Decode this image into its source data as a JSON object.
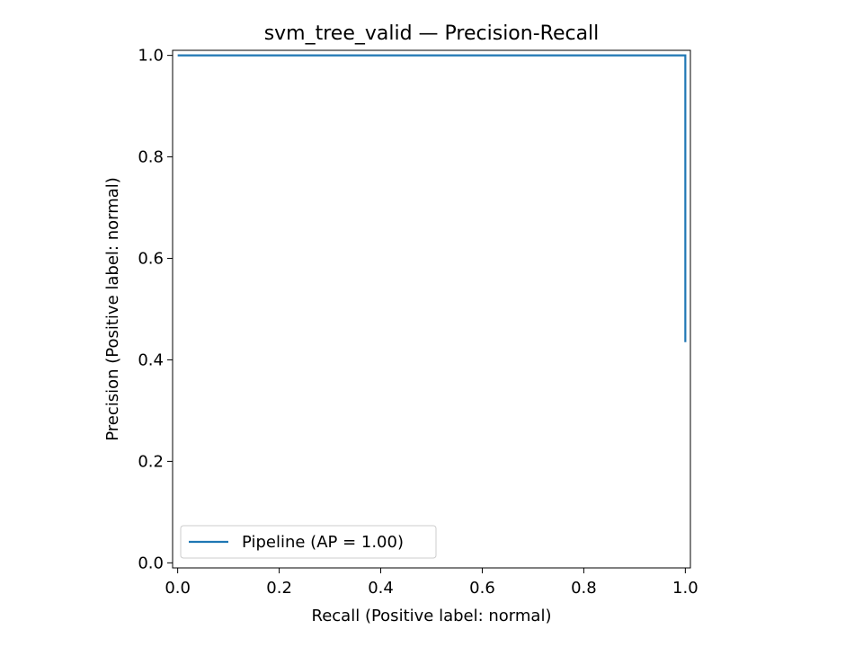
{
  "chart_data": {
    "type": "line",
    "title": "svm_tree_valid — Precision-Recall",
    "xlabel": "Recall (Positive label: normal)",
    "ylabel": "Precision (Positive label: normal)",
    "xlim": [
      -0.01,
      1.01
    ],
    "ylim": [
      -0.01,
      1.01
    ],
    "xticks": [
      0.0,
      0.2,
      0.4,
      0.6,
      0.8,
      1.0
    ],
    "xtick_labels": [
      "0.0",
      "0.2",
      "0.4",
      "0.6",
      "0.8",
      "1.0"
    ],
    "yticks": [
      0.0,
      0.2,
      0.4,
      0.6,
      0.8,
      1.0
    ],
    "ytick_labels": [
      "0.0",
      "0.2",
      "0.4",
      "0.6",
      "0.8",
      "1.0"
    ],
    "grid": false,
    "legend_position": "lower-left",
    "series": [
      {
        "name": "Pipeline (AP = 1.00)",
        "color": "#1f77b4",
        "drawstyle": "steps-post",
        "points": [
          {
            "x": 0.0,
            "y": 1.0
          },
          {
            "x": 1.0,
            "y": 1.0
          },
          {
            "x": 1.0,
            "y": 0.435
          }
        ]
      }
    ]
  }
}
